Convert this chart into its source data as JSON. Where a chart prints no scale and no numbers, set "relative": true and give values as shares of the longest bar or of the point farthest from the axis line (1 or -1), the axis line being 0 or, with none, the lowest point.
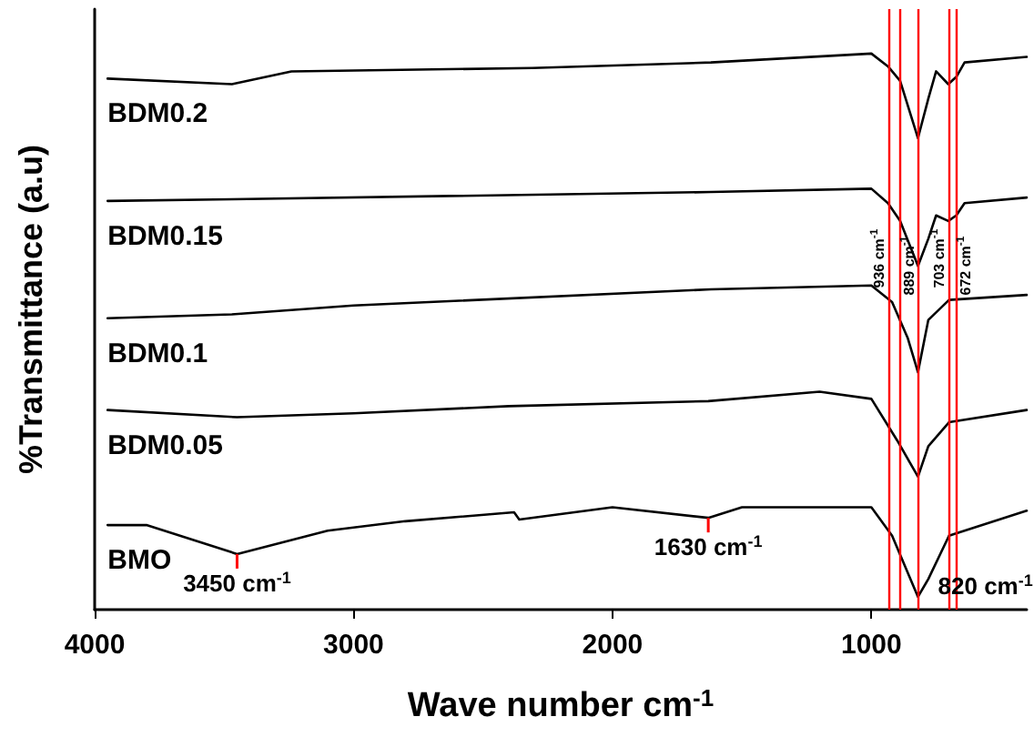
{
  "chart_data": {
    "type": "line",
    "relative": true,
    "xlabel": "Wave number cm$^{-1}$",
    "ylabel": "%Transmittance (a.u)",
    "xlim": [
      4000,
      400
    ],
    "xticks": [
      4000,
      3000,
      2000,
      1000
    ],
    "grid": false,
    "legend": false,
    "marker": "none",
    "line_style": "solid",
    "series": [
      {
        "name": "BDM0.2",
        "color": "#000000",
        "x": [
          3950,
          3470,
          3240,
          2310,
          1620,
          1000,
          936,
          889,
          820,
          780,
          750,
          703,
          672,
          640,
          400
        ],
        "values": [
          0.955,
          0.945,
          0.968,
          0.974,
          0.984,
          1.0,
          0.977,
          0.951,
          0.848,
          0.919,
          0.968,
          0.945,
          0.958,
          0.984,
          0.994
        ]
      },
      {
        "name": "BDM0.15",
        "color": "#000000",
        "x": [
          3950,
          3470,
          1620,
          1000,
          936,
          889,
          820,
          780,
          750,
          703,
          672,
          640,
          400
        ],
        "values": [
          0.735,
          0.738,
          0.751,
          0.757,
          0.731,
          0.699,
          0.618,
          0.667,
          0.709,
          0.699,
          0.709,
          0.731,
          0.741
        ]
      },
      {
        "name": "BDM0.1",
        "color": "#000000",
        "x": [
          3950,
          3470,
          3000,
          1620,
          1000,
          920,
          860,
          820,
          780,
          700,
          400
        ],
        "values": [
          0.524,
          0.531,
          0.547,
          0.576,
          0.583,
          0.553,
          0.489,
          0.427,
          0.521,
          0.557,
          0.566
        ]
      },
      {
        "name": "BDM0.05",
        "color": "#000000",
        "x": [
          3950,
          3450,
          3000,
          2400,
          1630,
          1200,
          1000,
          900,
          820,
          780,
          700,
          400
        ],
        "values": [
          0.359,
          0.346,
          0.353,
          0.366,
          0.375,
          0.392,
          0.379,
          0.304,
          0.239,
          0.294,
          0.337,
          0.359
        ]
      },
      {
        "name": "BMO",
        "color": "#000000",
        "x": [
          3950,
          3800,
          3450,
          3100,
          2800,
          2380,
          2360,
          2000,
          1630,
          1500,
          1000,
          920,
          820,
          780,
          700,
          400
        ],
        "values": [
          0.152,
          0.152,
          0.1,
          0.142,
          0.159,
          0.175,
          0.162,
          0.184,
          0.165,
          0.184,
          0.184,
          0.133,
          0.023,
          0.055,
          0.133,
          0.178
        ]
      }
    ],
    "ref_lines": [
      {
        "axis": "x",
        "value": 936,
        "label": "936 cm$^{-1}$",
        "color": "#ff0000"
      },
      {
        "axis": "x",
        "value": 889,
        "label": "889 cm$^{-1}$",
        "color": "#ff0000"
      },
      {
        "axis": "x",
        "value": 820,
        "color": "#ff0000"
      },
      {
        "axis": "x",
        "value": 703,
        "label": "703 cm$^{-1}$",
        "color": "#ff0000"
      },
      {
        "axis": "x",
        "value": 672,
        "label": "672 cm$^{-1}$",
        "color": "#ff0000"
      }
    ],
    "annotations": [
      {
        "text": "3450 cm$^{-1}$",
        "x": 3450,
        "y": 0.1
      },
      {
        "text": "1630 cm$^{-1}$",
        "x": 1630,
        "y": 0.165
      },
      {
        "text": "820 cm$^{-1}$",
        "x": 820,
        "y": 0.023
      }
    ]
  }
}
